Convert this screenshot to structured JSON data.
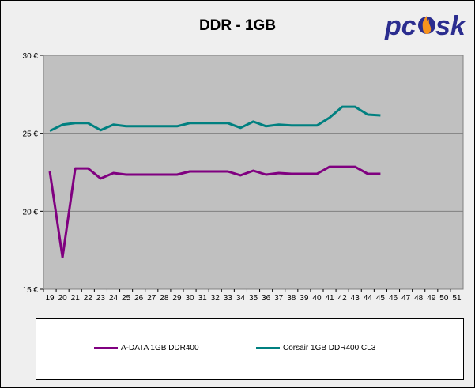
{
  "chart_data": {
    "type": "line",
    "title": "DDR - 1GB",
    "x": [
      19,
      20,
      21,
      22,
      23,
      24,
      25,
      26,
      27,
      28,
      29,
      30,
      31,
      32,
      33,
      34,
      35,
      36,
      37,
      38,
      39,
      40,
      41,
      42,
      43,
      44,
      45,
      46,
      47,
      48,
      49,
      50,
      51
    ],
    "ylim": [
      15,
      30
    ],
    "yticks": [
      15,
      20,
      25,
      30
    ],
    "ytick_labels": [
      "15 €",
      "20 €",
      "25 €",
      "30 €"
    ],
    "grid": true,
    "legend_position": "bottom",
    "series": [
      {
        "name": "A-DATA 1GB DDR400",
        "color": "#800080",
        "values": [
          22.55,
          17.05,
          22.75,
          22.75,
          22.1,
          22.45,
          22.35,
          22.35,
          22.35,
          22.35,
          22.35,
          22.55,
          22.55,
          22.55,
          22.55,
          22.3,
          22.6,
          22.35,
          22.45,
          22.4,
          22.4,
          22.4,
          22.85,
          22.85,
          22.85,
          22.4,
          22.4,
          null,
          null,
          null,
          null,
          null,
          null
        ]
      },
      {
        "name": "Corsair 1GB DDR400 CL3",
        "color": "#008080",
        "values": [
          25.15,
          25.55,
          25.65,
          25.65,
          25.2,
          25.55,
          25.45,
          25.45,
          25.45,
          25.45,
          25.45,
          25.65,
          25.65,
          25.65,
          25.65,
          25.35,
          25.75,
          25.45,
          25.55,
          25.5,
          25.5,
          25.5,
          26.0,
          26.7,
          26.7,
          26.2,
          26.15,
          null,
          null,
          null,
          null,
          null,
          null
        ]
      }
    ]
  },
  "logo": {
    "text_pc": "pc",
    "text_sk": "sk",
    "color_pc": "#2b2d8f",
    "color_flame": "#f7931e"
  }
}
